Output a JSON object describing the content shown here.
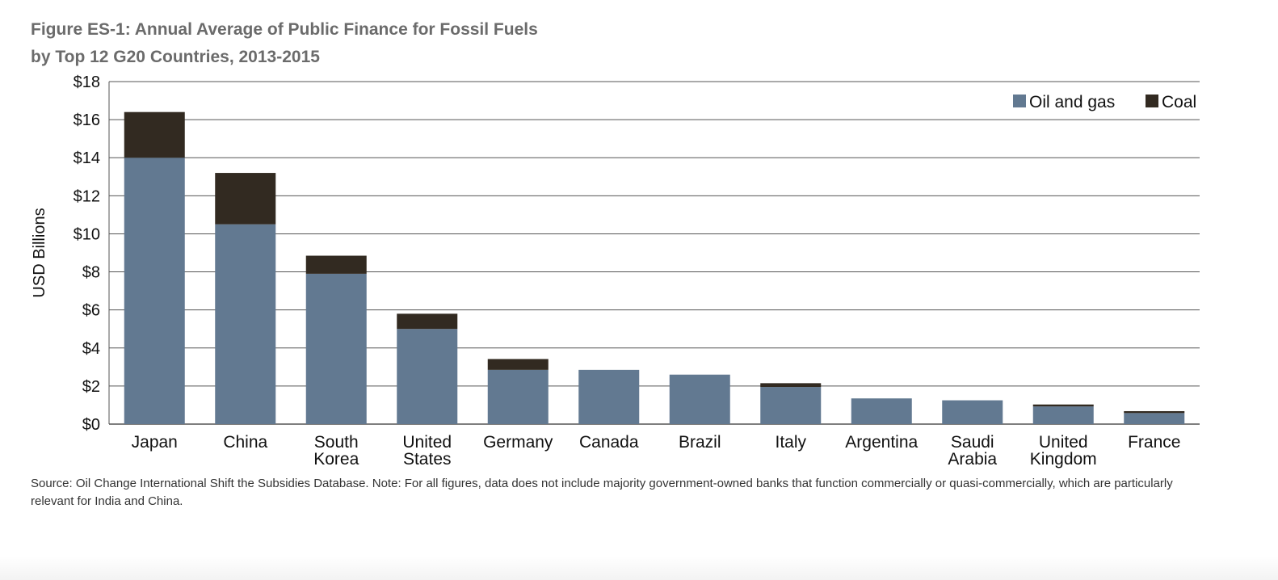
{
  "title_line1": "Figure ES-1: Annual Average of Public Finance for Fossil Fuels",
  "title_line2": "by Top 12 G20 Countries, 2013-2015",
  "source_note": "Source: Oil Change International Shift the Subsidies Database. Note: For all figures, data does not include majority government-owned banks that function commercially or quasi-commercially, which are particularly relevant for India and China.",
  "chart_data": {
    "type": "bar",
    "stacked": true,
    "title": "Figure ES-1: Annual Average of Public Finance for Fossil Fuels by Top 12 G20 Countries, 2013-2015",
    "xlabel": "",
    "ylabel": "USD Billions",
    "ylim": [
      0,
      18
    ],
    "yticks": [
      0,
      2,
      4,
      6,
      8,
      10,
      12,
      14,
      16,
      18
    ],
    "ytick_labels": [
      "$0",
      "$2",
      "$4",
      "$6",
      "$8",
      "$10",
      "$12",
      "$14",
      "$16",
      "$18"
    ],
    "grid": true,
    "legend_position": "top-right",
    "categories": [
      [
        "Japan"
      ],
      [
        "China"
      ],
      [
        "South",
        "Korea"
      ],
      [
        "United",
        "States"
      ],
      [
        "Germany"
      ],
      [
        "Canada"
      ],
      [
        "Brazil"
      ],
      [
        "Italy"
      ],
      [
        "Argentina"
      ],
      [
        "Saudi",
        "Arabia"
      ],
      [
        "United",
        "Kingdom"
      ],
      [
        "France"
      ]
    ],
    "series": [
      {
        "name": "Oil and gas",
        "color": "#627991",
        "values": [
          14.0,
          10.5,
          7.9,
          5.0,
          2.85,
          2.85,
          2.6,
          1.95,
          1.35,
          1.25,
          0.93,
          0.58
        ]
      },
      {
        "name": "Coal",
        "color": "#322a21",
        "values": [
          2.4,
          2.7,
          0.95,
          0.8,
          0.57,
          0,
          0,
          0.2,
          0,
          0,
          0.1,
          0.1
        ]
      }
    ]
  }
}
